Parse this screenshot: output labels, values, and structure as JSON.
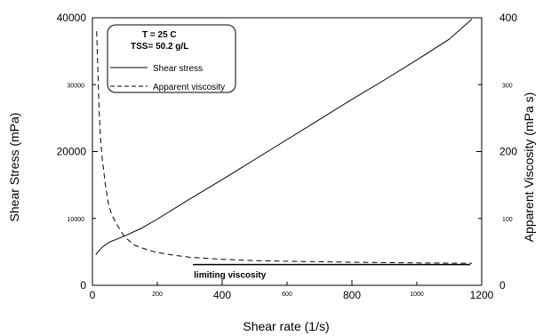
{
  "chart_data": {
    "type": "line",
    "xlabel": "Shear rate (1/s)",
    "ylabel": "Shear Stress (mPa)",
    "y2label": "Apparent Viscosity (mPa s)",
    "xlim": [
      0,
      1200
    ],
    "ylim": [
      0,
      40000
    ],
    "y2lim": [
      0,
      400
    ],
    "x_ticks_major": [
      "0",
      "400",
      "800",
      "1200"
    ],
    "x_ticks_minor": [
      "200",
      "600",
      "1000"
    ],
    "y_ticks_major": [
      "0",
      "20000",
      "40000"
    ],
    "y_ticks_minor": [
      "10000",
      "30000"
    ],
    "y2_ticks_major": [
      "0",
      "200",
      "400"
    ],
    "y2_ticks_minor": [
      "100",
      "300"
    ],
    "legend": {
      "title_lines": [
        "T = 25 C",
        "TSS= 50.2 g/L"
      ],
      "entries": [
        {
          "label": "Shear stress",
          "style": "solid"
        },
        {
          "label": "Apparent viscosity",
          "style": "dashed"
        }
      ],
      "position": "top-left"
    },
    "series": [
      {
        "name": "Shear stress",
        "axis": "left",
        "style": "solid",
        "x": [
          10,
          30,
          50,
          80,
          100,
          150,
          200,
          300,
          400,
          500,
          600,
          700,
          800,
          900,
          1000,
          1100,
          1170
        ],
        "y": [
          4600,
          5700,
          6400,
          7000,
          7400,
          8500,
          9900,
          12900,
          15800,
          18800,
          21800,
          24800,
          27800,
          30700,
          33700,
          36800,
          39800
        ]
      },
      {
        "name": "Apparent viscosity",
        "axis": "right",
        "style": "dashed",
        "x": [
          13,
          15,
          18,
          20,
          25,
          30,
          40,
          50,
          60,
          80,
          100,
          130,
          170,
          200,
          250,
          300,
          400,
          500,
          600,
          800,
          1000,
          1170
        ],
        "y": [
          380,
          350,
          300,
          270,
          220,
          190,
          150,
          120,
          105,
          87,
          72,
          60,
          53,
          49,
          45,
          42,
          39,
          37,
          36,
          34.5,
          33.5,
          33
        ]
      }
    ],
    "annotations": [
      {
        "text": "limiting viscosity",
        "x_start": 310,
        "x_end": 1165,
        "y2": 33
      }
    ]
  }
}
